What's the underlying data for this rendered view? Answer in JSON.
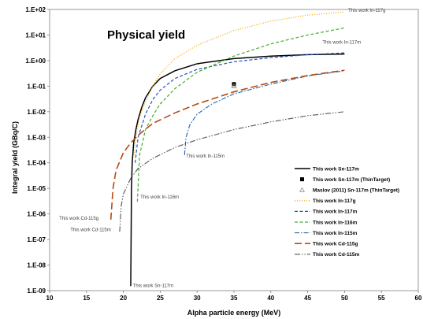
{
  "chart_data": {
    "type": "line",
    "title": "Physical yield",
    "xlabel": "Alpha particle energy (MeV)",
    "ylabel": "Integral yield (GBq/C)",
    "xlim": [
      10,
      60
    ],
    "ylim_log10": [
      -9,
      2
    ],
    "y_scale": "log",
    "grid": false,
    "legend_position": "right",
    "x_ticks": [
      "10",
      "15",
      "20",
      "25",
      "30",
      "35",
      "40",
      "45",
      "50",
      "55",
      "60"
    ],
    "y_ticks": [
      "1.E-09",
      "1.E-08",
      "1.E-07",
      "1.E-06",
      "1.E-05",
      "1.E-04",
      "1.E-03",
      "1.E-02",
      "1.E-01",
      "1.E+00",
      "1.E+01",
      "1.E+02"
    ],
    "series": [
      {
        "name": "This work Sn-117m",
        "color": "#000000",
        "dash": "solid",
        "x": [
          21.0,
          21.05,
          21.1,
          21.2,
          21.4,
          21.7,
          22.0,
          22.5,
          23,
          24,
          25,
          27,
          30,
          35,
          40,
          45,
          50
        ],
        "y": [
          1.5e-09,
          1e-07,
          1e-05,
          0.0001,
          0.0006,
          0.002,
          0.005,
          0.015,
          0.035,
          0.1,
          0.2,
          0.4,
          0.75,
          1.2,
          1.5,
          1.7,
          1.8
        ]
      },
      {
        "name": "This work Sn-117m (ThinTarget)",
        "color": "#000000",
        "marker": "square",
        "x": [
          35
        ],
        "y": [
          0.12
        ]
      },
      {
        "name": "Maslov (2011) Sn-117m (ThinTarget)",
        "color": "#888888",
        "marker": "triangle",
        "x": [
          35
        ],
        "y": [
          0.1
        ]
      },
      {
        "name": "This work In-117g",
        "color": "#f5b830",
        "dash": "dot",
        "x": [
          21.5,
          21.8,
          22.2,
          23,
          24,
          25,
          27,
          30,
          35,
          40,
          45,
          50
        ],
        "y": [
          0.0002,
          0.0015,
          0.006,
          0.025,
          0.1,
          0.3,
          1.2,
          4,
          15,
          35,
          60,
          80
        ]
      },
      {
        "name": "This work In-117m",
        "color": "#2255bb",
        "dash": "dash",
        "x": [
          21.6,
          22,
          23,
          24,
          25,
          27,
          30,
          35,
          40,
          45,
          50
        ],
        "y": [
          0.0001,
          0.001,
          0.008,
          0.03,
          0.07,
          0.2,
          0.45,
          0.9,
          1.3,
          1.7,
          2.0
        ]
      },
      {
        "name": "This work In-116m",
        "color": "#44aa33",
        "dash": "dash",
        "x": [
          21.9,
          22.2,
          23,
          24,
          25,
          27,
          30,
          35,
          40,
          45,
          50
        ],
        "y": [
          3e-06,
          0.0002,
          0.002,
          0.007,
          0.02,
          0.08,
          0.35,
          1.5,
          4.5,
          10,
          19
        ]
      },
      {
        "name": "This work In-115m",
        "color": "#2266aa",
        "dash": "dashdot",
        "x": [
          28.3,
          28.5,
          29,
          30,
          32,
          35,
          40,
          45,
          50
        ],
        "y": [
          0.0002,
          0.001,
          0.003,
          0.008,
          0.02,
          0.05,
          0.12,
          0.25,
          0.4
        ]
      },
      {
        "name": "This work Cd-115g",
        "color": "#b84a10",
        "dash": "longdash",
        "x": [
          18.3,
          18.6,
          19,
          20,
          21,
          22,
          24,
          27,
          30,
          35,
          40,
          45,
          50
        ],
        "y": [
          6e-07,
          1e-05,
          5e-05,
          0.00025,
          0.0006,
          0.0012,
          0.0035,
          0.009,
          0.02,
          0.06,
          0.14,
          0.26,
          0.42
        ]
      },
      {
        "name": "This work Cd-115m",
        "color": "#555555",
        "dash": "dashdotdot",
        "x": [
          19.5,
          19.7,
          20,
          21,
          22,
          24,
          27,
          30,
          35,
          40,
          45,
          50
        ],
        "y": [
          2e-07,
          2e-06,
          6e-06,
          2.5e-05,
          6e-05,
          0.00015,
          0.0004,
          0.0008,
          0.002,
          0.004,
          0.007,
          0.01
        ]
      }
    ],
    "annotations": [
      {
        "text": "This work In-117g",
        "x": 50.5,
        "y": 80
      },
      {
        "text": "This work In-117m",
        "x": 47,
        "y": 4.5
      },
      {
        "text": "This work In-115m",
        "x": 28.5,
        "y": 0.00016
      },
      {
        "text": "This work In-116m",
        "x": 22.3,
        "y": 4e-06
      },
      {
        "text": "This work Cd-115g",
        "x": 11.3,
        "y": 6e-07
      },
      {
        "text": "This work Cd-115m",
        "x": 12.8,
        "y": 2.1e-07
      },
      {
        "text": "This work Sn-117m",
        "x": 21.3,
        "y": 1.4e-09
      }
    ]
  }
}
